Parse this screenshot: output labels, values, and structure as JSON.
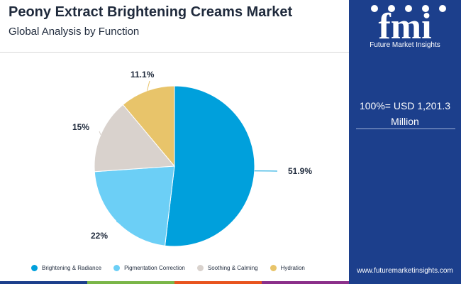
{
  "header": {
    "title": "Peony Extract Brightening Creams Market",
    "subtitle": "Global Analysis by Function"
  },
  "brand": {
    "logo_letters": "fmi",
    "logo_text": "Future Market Insights",
    "website": "www.futuremarketinsights.com",
    "panel_color": "#1c3f8c"
  },
  "total": {
    "text": "100%= USD 1,201.3 Million"
  },
  "chart_data": {
    "type": "pie",
    "categories": [
      "Brightening & Radiance",
      "Pigmentation Correction",
      "Soothing & Calming",
      "Hydration"
    ],
    "values": [
      51.9,
      22,
      15,
      11.1
    ],
    "labels": [
      "51.9%",
      "22%",
      "15%",
      "11.1%"
    ],
    "colors": [
      "#00a0dc",
      "#6ccff6",
      "#d9d2cd",
      "#e8c46a"
    ],
    "legend_position": "bottom",
    "start": "12 o'clock",
    "direction": "clockwise"
  },
  "bottom_bar_colors": [
    "#1c3f8c",
    "#7ab648",
    "#e8541e",
    "#8b2f8a"
  ]
}
